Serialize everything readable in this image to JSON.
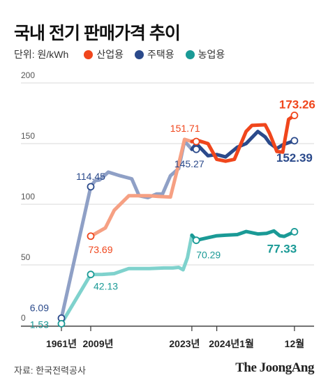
{
  "title": "국내 전기 판매가격 추이",
  "unit": "단위: 원/kWh",
  "colors": {
    "industrial": "#f0461c",
    "residential": "#2b4a8b",
    "agricultural": "#1a9a96",
    "residential_light": "#8fa0c6",
    "industrial_light": "#f6a083",
    "agricultural_light": "#7fd2cd"
  },
  "chart_data": {
    "type": "line",
    "title": "국내 전기 판매가격 추이",
    "unit": "원/kWh",
    "ylim": [
      0,
      200
    ],
    "yticks": [
      0,
      50,
      100,
      150,
      200
    ],
    "xlabels": [
      "1961년",
      "2009년",
      "2023년",
      "2024년1월",
      "12월"
    ],
    "legend": [
      "산업용",
      "주택용",
      "농업용"
    ],
    "grid": true,
    "series": [
      {
        "name": "주택용",
        "key": "residential",
        "points": [
          [
            0,
            6.09
          ],
          [
            1,
            114.45
          ],
          [
            1.15,
            119.5
          ],
          [
            1.3,
            120
          ],
          [
            1.6,
            126.5
          ],
          [
            2.0,
            123.5
          ],
          [
            2.4,
            121
          ],
          [
            2.65,
            107
          ],
          [
            2.95,
            105.5
          ],
          [
            3.25,
            108.5
          ],
          [
            3.45,
            108.5
          ],
          [
            3.72,
            123.5
          ],
          [
            4.0,
            129.5
          ],
          [
            4.2,
            152
          ],
          [
            4.45,
            145.27
          ],
          [
            4.6,
            150
          ],
          [
            5.0,
            140
          ],
          [
            5.3,
            141
          ],
          [
            5.6,
            139
          ],
          [
            6.0,
            147
          ],
          [
            6.3,
            150
          ],
          [
            6.7,
            160
          ],
          [
            6.95,
            155.5
          ],
          [
            7.1,
            150.5
          ],
          [
            7.35,
            146
          ],
          [
            7.55,
            149
          ],
          [
            7.95,
            152.39
          ]
        ]
      },
      {
        "name": "산업용",
        "key": "industrial",
        "points": [
          [
            1,
            73.69
          ],
          [
            1.5,
            80.5
          ],
          [
            1.8,
            95
          ],
          [
            2.3,
            107
          ],
          [
            2.7,
            107
          ],
          [
            3.0,
            107
          ],
          [
            3.3,
            106.5
          ],
          [
            3.72,
            106
          ],
          [
            4.0,
            133
          ],
          [
            4.2,
            153.5
          ],
          [
            4.45,
            151.71
          ],
          [
            4.6,
            153
          ],
          [
            5.0,
            150
          ],
          [
            5.3,
            137
          ],
          [
            5.6,
            135.5
          ],
          [
            5.9,
            137
          ],
          [
            6.3,
            160
          ],
          [
            6.5,
            165
          ],
          [
            6.95,
            165.5
          ],
          [
            7.1,
            158.5
          ],
          [
            7.35,
            143.5
          ],
          [
            7.55,
            143
          ],
          [
            7.75,
            170
          ],
          [
            7.95,
            173.26
          ]
        ]
      },
      {
        "name": "농업용",
        "key": "agricultural",
        "points": [
          [
            0,
            1.53
          ],
          [
            1,
            42.13
          ],
          [
            1.4,
            42.2
          ],
          [
            1.8,
            42.8
          ],
          [
            2.3,
            47
          ],
          [
            3.0,
            47
          ],
          [
            3.5,
            47.5
          ],
          [
            3.8,
            47.5
          ],
          [
            4.0,
            48
          ],
          [
            4.15,
            46
          ],
          [
            4.3,
            56
          ],
          [
            4.45,
            74.5
          ],
          [
            4.6,
            70.29
          ],
          [
            5.0,
            72.5
          ],
          [
            5.3,
            74
          ],
          [
            5.6,
            74.5
          ],
          [
            6.0,
            75
          ],
          [
            6.3,
            77.5
          ],
          [
            6.7,
            75.5
          ],
          [
            7.0,
            76
          ],
          [
            7.25,
            78
          ],
          [
            7.45,
            74
          ],
          [
            7.6,
            73.5
          ],
          [
            7.95,
            77.33
          ]
        ]
      }
    ],
    "data_labels": [
      {
        "series": "residential",
        "x": 0,
        "y": 6.09,
        "text": "6.09"
      },
      {
        "series": "agricultural",
        "x": 0,
        "y": 1.53,
        "text": "1.53"
      },
      {
        "series": "residential",
        "x": 1,
        "y": 114.45,
        "text": "114.45"
      },
      {
        "series": "industrial",
        "x": 1,
        "y": 73.69,
        "text": "73.69"
      },
      {
        "series": "agricultural",
        "x": 1,
        "y": 42.13,
        "text": "42.13"
      },
      {
        "series": "industrial",
        "x": 4.6,
        "y": 151.71,
        "text": "151.71"
      },
      {
        "series": "residential",
        "x": 4.6,
        "y": 145.27,
        "text": "145.27"
      },
      {
        "series": "agricultural",
        "x": 4.6,
        "y": 70.29,
        "text": "70.29"
      },
      {
        "series": "industrial",
        "x": 7.95,
        "y": 173.26,
        "text": "173.26"
      },
      {
        "series": "residential",
        "x": 7.95,
        "y": 152.39,
        "text": "152.39"
      },
      {
        "series": "agricultural",
        "x": 7.95,
        "y": 77.33,
        "text": "77.33"
      }
    ]
  },
  "source": "자료: 한국전력공사",
  "logo": "The JoongAng"
}
